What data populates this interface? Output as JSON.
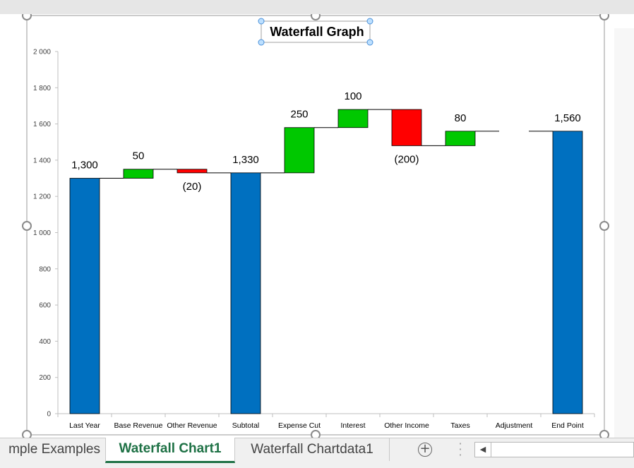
{
  "sheet_tabs": {
    "tabs": [
      "mple Examples",
      "Waterfall Chart1",
      "Waterfall Chartdata1"
    ],
    "active_index": 1
  },
  "controls": {
    "add_sheet_icon": "plus-circle-icon",
    "more_icon": "vertical-dots-icon",
    "scroll_left_icon": "caret-left-icon"
  },
  "colors": {
    "total": "#0070c0",
    "increase": "#00c800",
    "decrease": "#ff0000",
    "tab_active": "#1e7145"
  },
  "chart_data": {
    "type": "bar",
    "subtype": "waterfall",
    "title": "Waterfall Graph",
    "categories": [
      "Last Year",
      "Base Revenue",
      "Other Revenue",
      "Subtotal",
      "Expense Cut",
      "Interest",
      "Other Income",
      "Taxes",
      "Adjustment",
      "End Point"
    ],
    "values": [
      1300,
      50,
      -20,
      1330,
      250,
      100,
      -200,
      80,
      0,
      1560
    ],
    "kinds": [
      "total",
      "increase",
      "decrease",
      "total",
      "increase",
      "increase",
      "decrease",
      "increase",
      "none",
      "total"
    ],
    "data_labels": [
      "1,300",
      "50",
      "(20)",
      "1,330",
      "250",
      "100",
      "(200)",
      "80",
      "",
      "1,560"
    ],
    "ylim": [
      0,
      2000
    ],
    "yticks": [
      0,
      200,
      400,
      600,
      800,
      1000,
      1200,
      1400,
      1600,
      1800,
      2000
    ],
    "ytick_labels": [
      "0",
      "200",
      "400",
      "600",
      "800",
      "1 000",
      "1 200",
      "1 400",
      "1 600",
      "1 800",
      "2 000"
    ],
    "xlabel": "",
    "ylabel": "",
    "grid": false,
    "legend": "none"
  }
}
